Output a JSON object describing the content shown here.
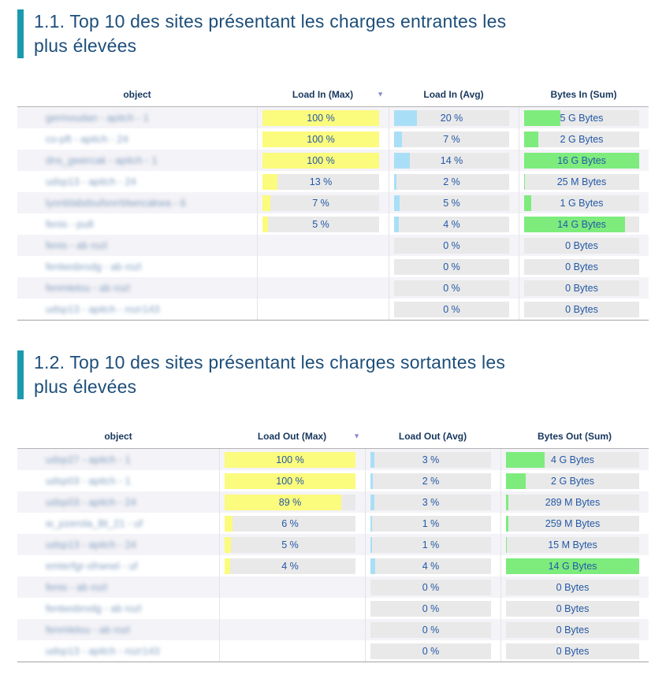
{
  "colors": {
    "accent_teal": "#1b9aae",
    "title_blue": "#1d4e7a",
    "header_text": "#17375e",
    "value_text": "#2458a6",
    "bar_yellow": "#fbfb7d",
    "bar_blue": "#a9dff6",
    "bar_green": "#7dec7d",
    "track_gray": "#e9e9e9",
    "stripe": "#f4f3f7",
    "sort_arrow": "#8787d2",
    "blurred_text": "#84a0c0"
  },
  "sections": [
    {
      "id": "top10-load-in",
      "title_lines": [
        "1.1. Top 10 des sites présentant les charges entrantes les",
        "plus élevées"
      ],
      "table": {
        "columns": {
          "object": "object",
          "max": "Load In (Max)",
          "avg": "Load In (Avg)",
          "bytes": "Bytes In (Sum)"
        },
        "sorted_by": "Load In (Max)",
        "sort_direction": "desc",
        "rows": [
          {
            "object_blurred": "germoudan - apitch - 1",
            "max": {
              "label": "100 %",
              "pct": 100
            },
            "avg": {
              "label": "20 %",
              "pct": 20
            },
            "bytes": {
              "label": "5 G Bytes",
              "pct": 31.3
            }
          },
          {
            "object_blurred": "co-pft - apitch - 24",
            "max": {
              "label": "100 %",
              "pct": 100
            },
            "avg": {
              "label": "7 %",
              "pct": 7
            },
            "bytes": {
              "label": "2 G Bytes",
              "pct": 12.5
            }
          },
          {
            "object_blurred": "dns_gwercak - apitch - 1",
            "max": {
              "label": "100 %",
              "pct": 100
            },
            "avg": {
              "label": "14 %",
              "pct": 14
            },
            "bytes": {
              "label": "16 G Bytes",
              "pct": 100
            }
          },
          {
            "object_blurred": "udsp13 - apitch - 24",
            "max": {
              "label": "13 %",
              "pct": 13
            },
            "avg": {
              "label": "2 %",
              "pct": 2
            },
            "bytes": {
              "label": "25 M Bytes",
              "pct": 0.2
            }
          },
          {
            "object_blurred": "lyonblabdsufsnrrblwncakwa - 6",
            "max": {
              "label": "7 %",
              "pct": 7
            },
            "avg": {
              "label": "5 %",
              "pct": 5
            },
            "bytes": {
              "label": "1 G Bytes",
              "pct": 6.3
            }
          },
          {
            "object_blurred": "fenis - pu8",
            "max": {
              "label": "5 %",
              "pct": 5
            },
            "avg": {
              "label": "4 %",
              "pct": 4
            },
            "bytes": {
              "label": "14 G Bytes",
              "pct": 87.5
            }
          },
          {
            "object_blurred": "fenis - ab rozl",
            "max": null,
            "avg": {
              "label": "0 %",
              "pct": 0
            },
            "bytes": {
              "label": "0 Bytes",
              "pct": 0
            }
          },
          {
            "object_blurred": "fentwsbrodg - ab rozl",
            "max": null,
            "avg": {
              "label": "0 %",
              "pct": 0
            },
            "bytes": {
              "label": "0 Bytes",
              "pct": 0
            }
          },
          {
            "object_blurred": "fenmlelou - ab rozl",
            "max": null,
            "avg": {
              "label": "0 %",
              "pct": 0
            },
            "bytes": {
              "label": "0 Bytes",
              "pct": 0
            }
          },
          {
            "object_blurred": "udsp13 - apitch - rozr143",
            "max": null,
            "avg": {
              "label": "0 %",
              "pct": 0
            },
            "bytes": {
              "label": "0 Bytes",
              "pct": 0
            }
          }
        ]
      }
    },
    {
      "id": "top10-load-out",
      "title_lines": [
        "1.2. Top 10 des sites présentant les charges sortantes les",
        "plus élevées"
      ],
      "table": {
        "columns": {
          "object": "object",
          "max": "Load Out (Max)",
          "avg": "Load Out (Avg)",
          "bytes": "Bytes Out (Sum)"
        },
        "sorted_by": "Load Out (Max)",
        "sort_direction": "desc",
        "rows": [
          {
            "object_blurred": "udsp27 - apitch - 1",
            "max": {
              "label": "100 %",
              "pct": 100
            },
            "avg": {
              "label": "3 %",
              "pct": 3
            },
            "bytes": {
              "label": "4 G Bytes",
              "pct": 29
            }
          },
          {
            "object_blurred": "udsp03 - apitch - 1",
            "max": {
              "label": "100 %",
              "pct": 100
            },
            "avg": {
              "label": "2 %",
              "pct": 2
            },
            "bytes": {
              "label": "2 G Bytes",
              "pct": 14.5
            }
          },
          {
            "object_blurred": "udsp03 - apitch - 24",
            "max": {
              "label": "89 %",
              "pct": 89
            },
            "avg": {
              "label": "3 %",
              "pct": 3
            },
            "bytes": {
              "label": "289 M Bytes",
              "pct": 2
            }
          },
          {
            "object_blurred": "w_pzerola_Bt_21 - uf",
            "max": {
              "label": "6 %",
              "pct": 6
            },
            "avg": {
              "label": "1 %",
              "pct": 1
            },
            "bytes": {
              "label": "259 M Bytes",
              "pct": 1.8
            }
          },
          {
            "object_blurred": "udsp13 - apitch - 24",
            "max": {
              "label": "5 %",
              "pct": 5
            },
            "avg": {
              "label": "1 %",
              "pct": 1
            },
            "bytes": {
              "label": "15 M Bytes",
              "pct": 0.1
            }
          },
          {
            "object_blurred": "emterfgr-sfrwnel - uf",
            "max": {
              "label": "4 %",
              "pct": 4
            },
            "avg": {
              "label": "4 %",
              "pct": 4
            },
            "bytes": {
              "label": "14 G Bytes",
              "pct": 100
            }
          },
          {
            "object_blurred": "fenis - ab rozl",
            "max": null,
            "avg": {
              "label": "0 %",
              "pct": 0
            },
            "bytes": {
              "label": "0 Bytes",
              "pct": 0
            }
          },
          {
            "object_blurred": "fentwsbrodg - ab rozl",
            "max": null,
            "avg": {
              "label": "0 %",
              "pct": 0
            },
            "bytes": {
              "label": "0 Bytes",
              "pct": 0
            }
          },
          {
            "object_blurred": "fenmlelou - ab rozl",
            "max": null,
            "avg": {
              "label": "0 %",
              "pct": 0
            },
            "bytes": {
              "label": "0 Bytes",
              "pct": 0
            }
          },
          {
            "object_blurred": "udsp13 - apitch - rozr143",
            "max": null,
            "avg": {
              "label": "0 %",
              "pct": 0
            },
            "bytes": {
              "label": "0 Bytes",
              "pct": 0
            }
          }
        ]
      }
    }
  ],
  "sort_arrow_glyph": "▼"
}
